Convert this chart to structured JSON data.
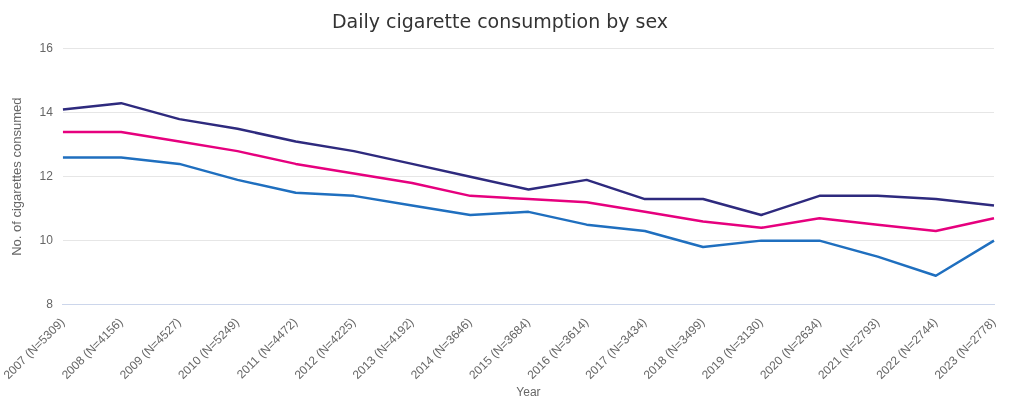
{
  "chart_data": {
    "type": "line",
    "title": "Daily cigarette consumption by sex",
    "xlabel": "Year",
    "ylabel": "No. of cigarettes consumed",
    "categories": [
      "2007 (N=5309)",
      "2008 (N=4156)",
      "2009 (N=4527)",
      "2010 (N=5249)",
      "2011 (N=4472)",
      "2012 (N=4225)",
      "2013 (N=4192)",
      "2014 (N=3646)",
      "2015 (N=3684)",
      "2016 (N=3614)",
      "2017 (N=3434)",
      "2018 (N=3499)",
      "2019 (N=3130)",
      "2020 (N=2634)",
      "2021 (N=2793)",
      "2022 (N=2744)",
      "2023 (N=2778)"
    ],
    "series": [
      {
        "color": "#2e2a7e",
        "values": [
          14.1,
          14.3,
          13.8,
          13.5,
          13.1,
          12.8,
          12.4,
          12.0,
          11.6,
          11.9,
          11.3,
          11.3,
          10.8,
          11.4,
          11.4,
          11.3,
          11.1
        ]
      },
      {
        "color": "#e6007e",
        "values": [
          13.4,
          13.4,
          13.1,
          12.8,
          12.4,
          12.1,
          11.8,
          11.4,
          11.3,
          11.2,
          10.9,
          10.6,
          10.4,
          10.7,
          10.5,
          10.3,
          10.7
        ]
      },
      {
        "color": "#1f6fbf",
        "values": [
          12.6,
          12.6,
          12.4,
          11.9,
          11.5,
          11.4,
          11.1,
          10.8,
          10.9,
          10.5,
          10.3,
          9.8,
          10.0,
          10.0,
          9.5,
          8.9,
          10.0
        ]
      }
    ],
    "ylim": [
      8,
      16
    ],
    "yticks": [
      8,
      10,
      12,
      14,
      16
    ],
    "grid": "y",
    "legend": false,
    "marker": "none",
    "line_style": "solid"
  }
}
